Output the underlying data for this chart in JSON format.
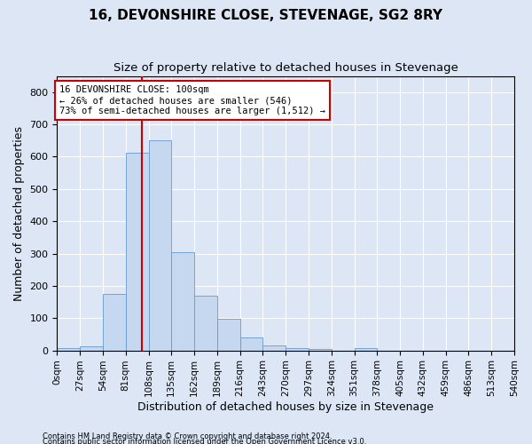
{
  "title": "16, DEVONSHIRE CLOSE, STEVENAGE, SG2 8RY",
  "subtitle": "Size of property relative to detached houses in Stevenage",
  "xlabel": "Distribution of detached houses by size in Stevenage",
  "ylabel": "Number of detached properties",
  "bin_edges": [
    0,
    27,
    54,
    81,
    108,
    135,
    162,
    189,
    216,
    243,
    270,
    297,
    324,
    351,
    378,
    405,
    432,
    459,
    486,
    513,
    540
  ],
  "bar_heights": [
    8,
    13,
    175,
    612,
    650,
    305,
    170,
    97,
    40,
    15,
    8,
    5,
    0,
    8,
    0,
    0,
    0,
    0,
    0,
    0
  ],
  "bar_color": "#c5d8f0",
  "bar_edge_color": "#6699cc",
  "property_size": 100,
  "vline_color": "#cc0000",
  "annotation_text": "16 DEVONSHIRE CLOSE: 100sqm\n← 26% of detached houses are smaller (546)\n73% of semi-detached houses are larger (1,512) →",
  "annotation_box_color": "#ffffff",
  "annotation_box_edge_color": "#cc0000",
  "ylim": [
    0,
    850
  ],
  "yticks": [
    0,
    100,
    200,
    300,
    400,
    500,
    600,
    700,
    800
  ],
  "footnote1": "Contains HM Land Registry data © Crown copyright and database right 2024.",
  "footnote2": "Contains public sector information licensed under the Open Government Licence v3.0.",
  "background_color": "#dce6f5",
  "axes_background": "#dce6f5",
  "grid_color": "#ffffff",
  "title_fontsize": 11,
  "subtitle_fontsize": 9.5,
  "tick_label_fontsize": 7.5,
  "ylabel_fontsize": 9,
  "xlabel_fontsize": 9,
  "annotation_fontsize": 7.5,
  "footnote_fontsize": 6
}
